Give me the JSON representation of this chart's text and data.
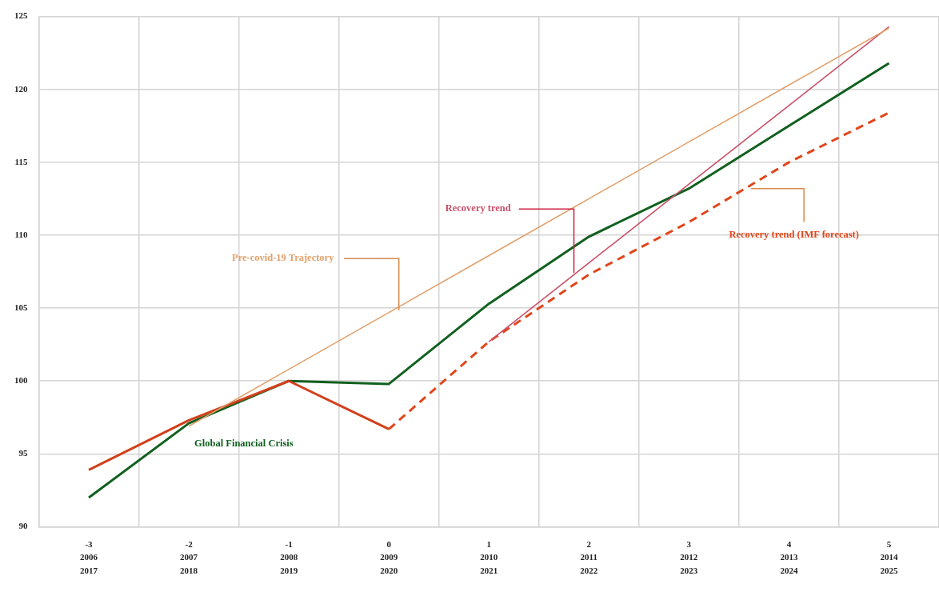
{
  "chart_data": {
    "type": "line",
    "categories": [
      "-3\n2006\n2017",
      "-2\n2007\n2018",
      "-1\n2008\n2019",
      "0\n2009\n2020",
      "1\n2010\n2021",
      "2\n2011\n2022",
      "3\n2012\n2023",
      "4\n2013\n2024",
      "5\n2014\n2025"
    ],
    "series": [
      {
        "name": "Pre-covid-19 Trajectory",
        "color": "#e2a06c",
        "values": [
          null,
          96.9,
          100.8,
          104.7,
          108.6,
          112.5,
          116.4,
          120.3,
          124.2
        ]
      },
      {
        "name": "Recovery trend",
        "color": "#c8506a",
        "values": [
          null,
          null,
          null,
          null,
          102.7,
          108.1,
          113.5,
          118.9,
          124.3
        ]
      },
      {
        "name": "Recovery trend (IMF forecast)",
        "color": "#e0461a",
        "line_style": "dashed",
        "values": [
          null,
          null,
          null,
          96.7,
          102.7,
          107.3,
          110.9,
          115.0,
          118.4
        ]
      },
      {
        "color": "#d2401c",
        "values": [
          93.9,
          97.3,
          100.0,
          96.7,
          null,
          null,
          null,
          null,
          null
        ]
      },
      {
        "name": "Global Financial Crisis",
        "color": "#11601f",
        "values": [
          92.0,
          97.1,
          100.0,
          99.8,
          105.3,
          109.9,
          113.2,
          117.5,
          121.8
        ]
      }
    ],
    "ylim": [
      90,
      125
    ],
    "yticks": [
      90,
      95,
      100,
      105,
      110,
      115,
      120,
      125
    ],
    "grid": true,
    "legend": false,
    "marker": "none",
    "line_style": "solid"
  }
}
